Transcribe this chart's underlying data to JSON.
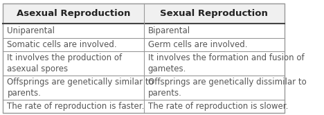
{
  "col1_header": "Asexual Reproduction",
  "col2_header": "Sexual Reproduction",
  "rows": [
    [
      "Uniparental",
      "Biparental"
    ],
    [
      "Somatic cells are involved.",
      "Germ cells are involved."
    ],
    [
      "It involves the production of\nasexual spores",
      "It involves the formation and fusion of\ngametes."
    ],
    [
      "Offsprings are genetically similar to\nparents.",
      "Offsprings are genetically dissimilar to\nparents."
    ],
    [
      "The rate of reproduction is faster.",
      "The rate of reproduction is slower."
    ]
  ],
  "header_bg": "#f0f0f0",
  "body_bg": "#ffffff",
  "border_color": "#999999",
  "header_line_color": "#444444",
  "header_text_color": "#222222",
  "body_text_color": "#555555",
  "header_fontsize": 9.5,
  "body_fontsize": 8.5,
  "fig_width": 4.68,
  "fig_height": 1.66
}
